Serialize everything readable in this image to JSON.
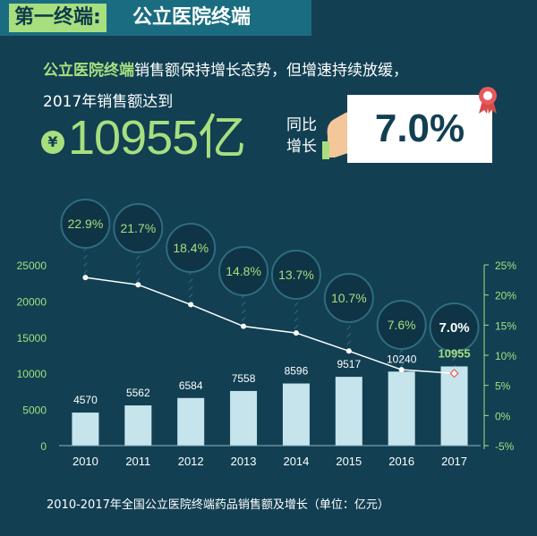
{
  "banner": {
    "label": "第一终端:",
    "title": "公立医院终端"
  },
  "headline": {
    "highlight": "公立医院终端",
    "line1_rest": "销售额保持增长态势，但增速持续放缓，",
    "line2": "2017年销售额达到",
    "currency_symbol": "¥",
    "big_value": "10955亿",
    "yoy_label_1": "同比",
    "yoy_label_2": "增长",
    "yoy_value": "7.0%"
  },
  "colors": {
    "background": "#123f52",
    "accent": "#a7df7f",
    "bar": "#c6e4ec",
    "line": "#ffffff"
  },
  "caption": "2010-2017年全国公立医院终端药品销售额及增长（单位：亿元）",
  "chart_data": {
    "type": "bar",
    "categories": [
      "2010",
      "2011",
      "2012",
      "2013",
      "2014",
      "2015",
      "2016",
      "2017"
    ],
    "series": [
      {
        "values": [
          4570,
          5562,
          6584,
          7558,
          8596,
          9517,
          10240,
          10955
        ]
      },
      {
        "type": "line",
        "axis": "right",
        "values": [
          22.9,
          21.7,
          18.4,
          14.8,
          13.7,
          10.7,
          7.6,
          7.0
        ]
      }
    ],
    "bar_labels": [
      "4570",
      "5562",
      "6584",
      "7558",
      "8596",
      "9517",
      "10240",
      "10955"
    ],
    "growth_labels": [
      "22.9%",
      "21.7%",
      "18.4%",
      "14.8%",
      "13.7%",
      "10.7%",
      "7.6%",
      "7.0%"
    ],
    "ylim": [
      0,
      25000
    ],
    "y_ticks": [
      "0",
      "5000",
      "10000",
      "15000",
      "20000",
      "25000"
    ],
    "y2lim": [
      -5,
      25
    ],
    "y2_ticks": [
      "-5%",
      "0%",
      "5%",
      "10%",
      "15%",
      "20%",
      "25%"
    ],
    "highlight_category": "2017",
    "grid": false
  }
}
